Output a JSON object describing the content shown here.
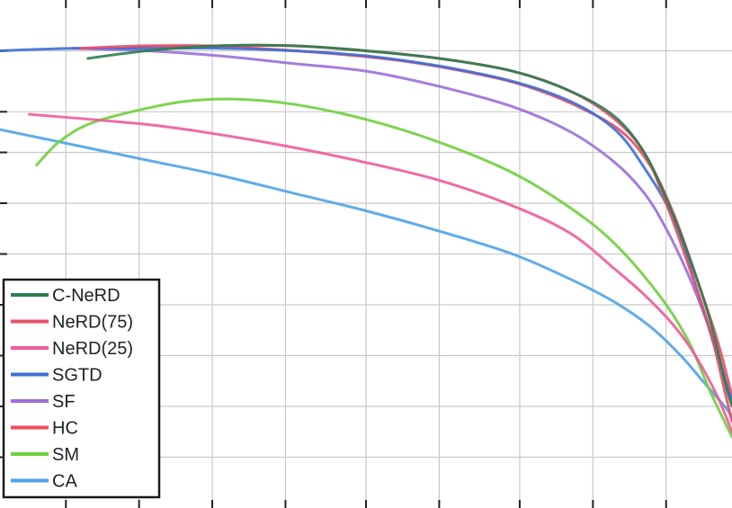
{
  "chart_data": {
    "type": "line",
    "title": "",
    "xlabel": "",
    "ylabel": "",
    "xlim": [
      0,
      1
    ],
    "ylim": [
      0,
      1
    ],
    "xticks": [
      0.09,
      0.19,
      0.29,
      0.39,
      0.5,
      0.6,
      0.71,
      0.81,
      0.91
    ],
    "yticks": [
      0.1,
      0.2,
      0.3,
      0.4,
      0.5,
      0.6,
      0.7,
      0.78,
      0.9
    ],
    "grid": true,
    "legend": {
      "position": "bottom-left"
    },
    "series": [
      {
        "name": "C-NeRD",
        "color": "#2e7d4f",
        "x": [
          0.12,
          0.2,
          0.3,
          0.4,
          0.5,
          0.6,
          0.7,
          0.78,
          0.84,
          0.88,
          0.91,
          0.94,
          0.97,
          0.99,
          1.0
        ],
        "y": [
          0.885,
          0.9,
          0.91,
          0.91,
          0.9,
          0.885,
          0.86,
          0.82,
          0.77,
          0.7,
          0.61,
          0.5,
          0.37,
          0.25,
          0.2
        ]
      },
      {
        "name": "NeRD(75)",
        "color": "#e8506a",
        "x": [
          0.11,
          0.2,
          0.3,
          0.4,
          0.5,
          0.6,
          0.7,
          0.78,
          0.84,
          0.88,
          0.91,
          0.94,
          0.97,
          0.99,
          1.0
        ],
        "y": [
          0.905,
          0.91,
          0.91,
          0.91,
          0.9,
          0.885,
          0.86,
          0.82,
          0.765,
          0.7,
          0.6,
          0.48,
          0.35,
          0.23,
          0.17
        ]
      },
      {
        "name": "NeRD(25)",
        "color": "#f05a9a",
        "x": [
          0.04,
          0.2,
          0.3,
          0.4,
          0.5,
          0.6,
          0.7,
          0.78,
          0.84,
          0.88,
          0.92,
          0.95,
          0.98,
          1.0
        ],
        "y": [
          0.775,
          0.755,
          0.735,
          0.71,
          0.68,
          0.645,
          0.595,
          0.54,
          0.47,
          0.42,
          0.36,
          0.3,
          0.22,
          0.15
        ]
      },
      {
        "name": "SGTD",
        "color": "#3d6fd6",
        "x": [
          0.0,
          0.1,
          0.2,
          0.3,
          0.4,
          0.5,
          0.6,
          0.7,
          0.78,
          0.84,
          0.88,
          0.92,
          0.95,
          0.98,
          1.0
        ],
        "y": [
          0.9,
          0.905,
          0.905,
          0.905,
          0.9,
          0.89,
          0.87,
          0.84,
          0.8,
          0.745,
          0.67,
          0.57,
          0.44,
          0.3,
          0.21
        ]
      },
      {
        "name": "SF",
        "color": "#9a6fd8",
        "x": [
          0.1,
          0.2,
          0.3,
          0.4,
          0.5,
          0.6,
          0.7,
          0.78,
          0.84,
          0.88,
          0.91,
          0.94,
          0.97,
          0.99
        ],
        "y": [
          0.905,
          0.9,
          0.89,
          0.875,
          0.86,
          0.83,
          0.79,
          0.74,
          0.68,
          0.62,
          0.55,
          0.46,
          0.35,
          0.26
        ]
      },
      {
        "name": "HC",
        "color": "#ef4a5e",
        "x": [
          0.15,
          0.25,
          0.35,
          0.45,
          0.55,
          0.65,
          0.72,
          0.79,
          0.85,
          0.89,
          0.92,
          0.95,
          0.98,
          1.0
        ],
        "y": [
          0.905,
          0.91,
          0.905,
          0.895,
          0.88,
          0.855,
          0.83,
          0.79,
          0.74,
          0.67,
          0.58,
          0.46,
          0.33,
          0.22
        ]
      },
      {
        "name": "SM",
        "color": "#6fcf3c",
        "x": [
          0.05,
          0.08,
          0.12,
          0.18,
          0.25,
          0.32,
          0.4,
          0.5,
          0.6,
          0.7,
          0.78,
          0.84,
          0.9,
          0.94,
          0.97,
          1.0
        ],
        "y": [
          0.675,
          0.72,
          0.755,
          0.78,
          0.8,
          0.805,
          0.795,
          0.765,
          0.72,
          0.66,
          0.59,
          0.52,
          0.42,
          0.33,
          0.23,
          0.14
        ]
      },
      {
        "name": "CA",
        "color": "#4fa3e8",
        "x": [
          0.0,
          0.1,
          0.2,
          0.3,
          0.4,
          0.5,
          0.6,
          0.7,
          0.78,
          0.84,
          0.89,
          0.93,
          0.96,
          0.99,
          1.0
        ],
        "y": [
          0.745,
          0.715,
          0.685,
          0.655,
          0.62,
          0.585,
          0.545,
          0.5,
          0.45,
          0.405,
          0.355,
          0.3,
          0.25,
          0.2,
          0.18
        ]
      }
    ]
  }
}
